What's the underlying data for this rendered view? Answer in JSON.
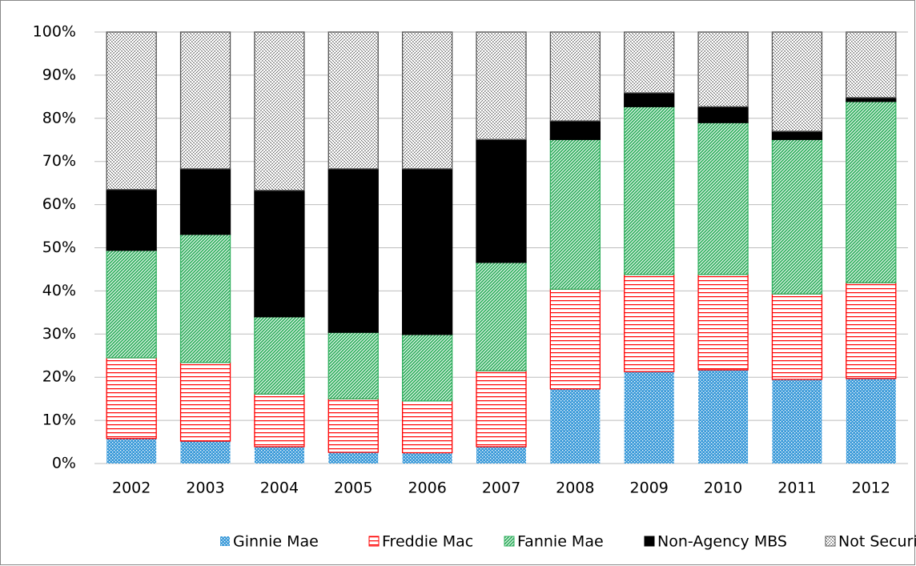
{
  "chart_data": {
    "type": "stacked_bar",
    "categories": [
      "2002",
      "2003",
      "2004",
      "2005",
      "2006",
      "2007",
      "2008",
      "2009",
      "2010",
      "2011",
      "2012"
    ],
    "series": [
      {
        "name": "Ginnie Mae",
        "color": "#3a9ad9",
        "pattern": "dots",
        "values": [
          5.8,
          5.2,
          3.9,
          2.6,
          2.5,
          3.9,
          17.3,
          21.3,
          21.7,
          19.5,
          19.7
        ]
      },
      {
        "name": "Freddie Mac",
        "color": "#ff0000",
        "pattern": "hlines",
        "values": [
          18.7,
          18.2,
          12.2,
          12.4,
          12.0,
          17.6,
          23.1,
          22.5,
          22.1,
          19.8,
          22.2
        ]
      },
      {
        "name": "Fannie Mae",
        "color": "#33b060",
        "pattern": "diag",
        "values": [
          24.9,
          29.7,
          17.9,
          15.4,
          15.4,
          25.1,
          34.7,
          38.9,
          35.2,
          35.8,
          42.0
        ]
      },
      {
        "name": "Non-Agency MBS",
        "color": "#000000",
        "pattern": "solid",
        "values": [
          14.1,
          15.2,
          29.3,
          37.9,
          38.4,
          28.5,
          4.3,
          3.2,
          3.7,
          1.9,
          0.9
        ]
      },
      {
        "name": "Not Securitized",
        "color": "#555555",
        "pattern": "speckle",
        "values": [
          36.5,
          31.7,
          36.7,
          31.7,
          31.7,
          24.9,
          20.6,
          14.1,
          17.3,
          23.0,
          15.2
        ]
      }
    ],
    "ylim": [
      0,
      100
    ],
    "yticks": [
      {
        "value": 0,
        "label": "0%"
      },
      {
        "value": 10,
        "label": "10%"
      },
      {
        "value": 20,
        "label": "20%"
      },
      {
        "value": 30,
        "label": "30%"
      },
      {
        "value": 40,
        "label": "40%"
      },
      {
        "value": 50,
        "label": "50%"
      },
      {
        "value": 60,
        "label": "60%"
      },
      {
        "value": 70,
        "label": "70%"
      },
      {
        "value": 80,
        "label": "80%"
      },
      {
        "value": 90,
        "label": "90%"
      },
      {
        "value": 100,
        "label": "100%"
      }
    ],
    "grid": true,
    "legend": "bottom"
  }
}
